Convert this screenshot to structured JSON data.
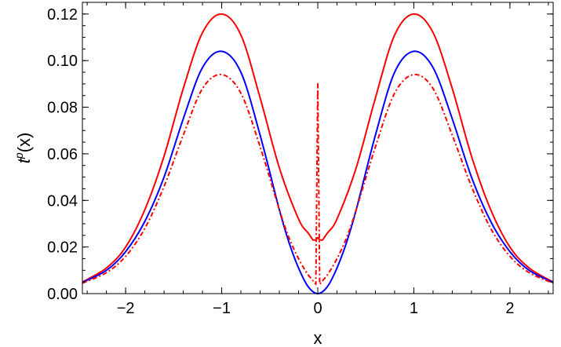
{
  "chart_data": {
    "type": "line",
    "xlabel": "x",
    "ylabel": {
      "base": "t",
      "sup": "p",
      "arg": "(x)"
    },
    "xlim": [
      -2.45,
      2.45
    ],
    "ylim": [
      0,
      0.125
    ],
    "xticks": [
      -2,
      -1,
      0,
      1,
      2
    ],
    "xtick_labels": [
      "−2",
      "−1",
      "0",
      "1",
      "2"
    ],
    "yticks": [
      0,
      0.02,
      0.04,
      0.06,
      0.08,
      0.1,
      0.12
    ],
    "ytick_labels": [
      "0.00",
      "0.02",
      "0.04",
      "0.06",
      "0.08",
      "0.10",
      "0.12"
    ],
    "grid": false,
    "frame": "box",
    "series": [
      {
        "color": "#ff0000",
        "style": "solid",
        "x": [
          -2.45,
          -2.2,
          -2.0,
          -1.8,
          -1.6,
          -1.4,
          -1.2,
          -1.0,
          -0.8,
          -0.6,
          -0.4,
          -0.2,
          -0.1,
          -0.05,
          -0.02,
          0.0,
          0.02,
          0.05,
          0.1,
          0.2,
          0.4,
          0.6,
          0.8,
          1.0,
          1.2,
          1.4,
          1.6,
          1.8,
          2.0,
          2.2,
          2.45
        ],
        "y": [
          0.005,
          0.011,
          0.02,
          0.036,
          0.059,
          0.088,
          0.112,
          0.12,
          0.111,
          0.084,
          0.054,
          0.032,
          0.026,
          0.023,
          0.023,
          0.024,
          0.023,
          0.023,
          0.026,
          0.032,
          0.054,
          0.084,
          0.111,
          0.12,
          0.112,
          0.088,
          0.059,
          0.036,
          0.02,
          0.011,
          0.005
        ]
      },
      {
        "color": "#0000ff",
        "style": "solid",
        "x": [
          -2.45,
          -2.2,
          -2.0,
          -1.8,
          -1.6,
          -1.4,
          -1.2,
          -1.0,
          -0.8,
          -0.6,
          -0.4,
          -0.3,
          -0.2,
          -0.1,
          0.0,
          0.1,
          0.2,
          0.3,
          0.4,
          0.6,
          0.8,
          1.0,
          1.2,
          1.4,
          1.6,
          1.8,
          2.0,
          2.2,
          2.45
        ],
        "y": [
          0.0048,
          0.01,
          0.018,
          0.031,
          0.05,
          0.075,
          0.097,
          0.104,
          0.095,
          0.068,
          0.036,
          0.022,
          0.011,
          0.003,
          0.0,
          0.003,
          0.011,
          0.022,
          0.036,
          0.068,
          0.095,
          0.104,
          0.097,
          0.075,
          0.05,
          0.031,
          0.018,
          0.01,
          0.0048
        ]
      },
      {
        "color": "#ff0000",
        "style": "dashdot",
        "x": [
          -2.45,
          -2.2,
          -2.0,
          -1.8,
          -1.6,
          -1.4,
          -1.2,
          -1.0,
          -0.8,
          -0.6,
          -0.4,
          -0.3,
          -0.2,
          -0.1,
          -0.02,
          0.0,
          0.02,
          0.1,
          0.2,
          0.3,
          0.4,
          0.6,
          0.8,
          1.0,
          1.2,
          1.4,
          1.6,
          1.8,
          2.0,
          2.2,
          2.45
        ],
        "y": [
          0.0045,
          0.009,
          0.016,
          0.028,
          0.046,
          0.068,
          0.088,
          0.094,
          0.086,
          0.063,
          0.036,
          0.024,
          0.015,
          0.008,
          0.004,
          0.09,
          0.004,
          0.008,
          0.015,
          0.024,
          0.036,
          0.063,
          0.086,
          0.094,
          0.088,
          0.068,
          0.046,
          0.028,
          0.016,
          0.009,
          0.0045
        ]
      }
    ]
  }
}
